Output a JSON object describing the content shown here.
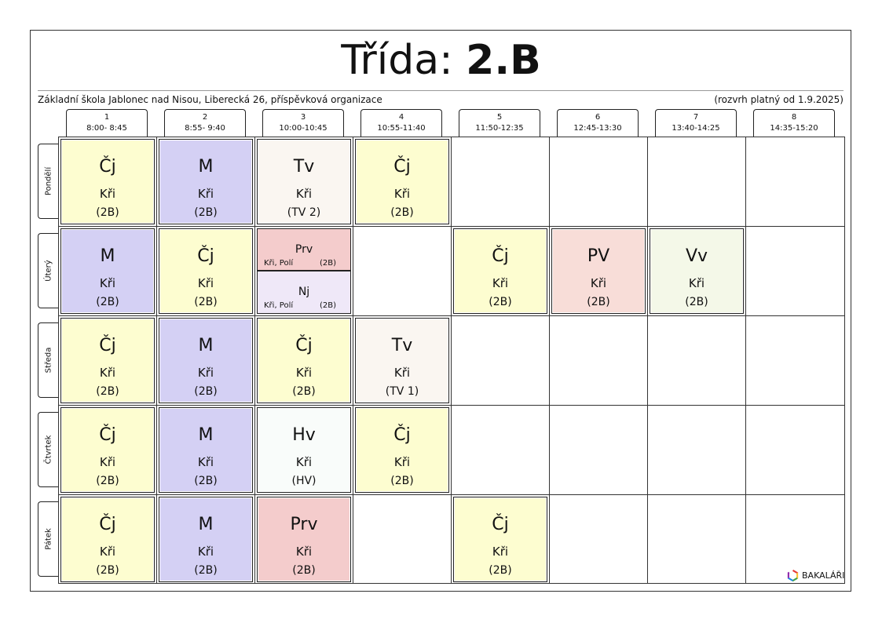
{
  "header": {
    "title_prefix": "Třída:",
    "class_name": "2.B",
    "school": "Základní škola Jablonec nad Nisou, Liberecká 26, příspěvková organizace",
    "validity": "(rozvrh platný od 1.9.2025)"
  },
  "periods": [
    {
      "num": "1",
      "time": "8:00- 8:45"
    },
    {
      "num": "2",
      "time": "8:55- 9:40"
    },
    {
      "num": "3",
      "time": "10:00-10:45"
    },
    {
      "num": "4",
      "time": "10:55-11:40"
    },
    {
      "num": "5",
      "time": "11:50-12:35"
    },
    {
      "num": "6",
      "time": "12:45-13:30"
    },
    {
      "num": "7",
      "time": "13:40-14:25"
    },
    {
      "num": "8",
      "time": "14:35-15:20"
    }
  ],
  "days": [
    "Pondělí",
    "Úterý",
    "Středa",
    "Čtvrtek",
    "Pátek"
  ],
  "colors": {
    "cj": "#fdfdd0",
    "m": "#d4d0f4",
    "tv": "#faf6f1",
    "prv": "#f4cccc",
    "pv": "#f8ddd8",
    "vv": "#f4f8e8",
    "hv": "#f9fcfa",
    "nj": "#efe8f8"
  },
  "lessons": {
    "mon_1": {
      "subject": "Čj",
      "teacher": "Kři",
      "group": "(2B)"
    },
    "mon_2": {
      "subject": "M",
      "teacher": "Kři",
      "group": "(2B)"
    },
    "mon_3": {
      "subject": "Tv",
      "teacher": "Kři",
      "group": "(TV 2)"
    },
    "mon_4": {
      "subject": "Čj",
      "teacher": "Kři",
      "group": "(2B)"
    },
    "tue_1": {
      "subject": "M",
      "teacher": "Kři",
      "group": "(2B)"
    },
    "tue_2": {
      "subject": "Čj",
      "teacher": "Kři",
      "group": "(2B)"
    },
    "tue_3a": {
      "subject": "Prv",
      "teacher": "Kři, Polí",
      "group": "(2B)"
    },
    "tue_3b": {
      "subject": "Nj",
      "teacher": "Kři, Polí",
      "group": "(2B)"
    },
    "tue_5": {
      "subject": "Čj",
      "teacher": "Kři",
      "group": "(2B)"
    },
    "tue_6": {
      "subject": "PV",
      "teacher": "Kři",
      "group": "(2B)"
    },
    "tue_7": {
      "subject": "Vv",
      "teacher": "Kři",
      "group": "(2B)"
    },
    "wed_1": {
      "subject": "Čj",
      "teacher": "Kři",
      "group": "(2B)"
    },
    "wed_2": {
      "subject": "M",
      "teacher": "Kři",
      "group": "(2B)"
    },
    "wed_3": {
      "subject": "Čj",
      "teacher": "Kři",
      "group": "(2B)"
    },
    "wed_4": {
      "subject": "Tv",
      "teacher": "Kři",
      "group": "(TV 1)"
    },
    "thu_1": {
      "subject": "Čj",
      "teacher": "Kři",
      "group": "(2B)"
    },
    "thu_2": {
      "subject": "M",
      "teacher": "Kři",
      "group": "(2B)"
    },
    "thu_3": {
      "subject": "Hv",
      "teacher": "Kři",
      "group": "(HV)"
    },
    "thu_4": {
      "subject": "Čj",
      "teacher": "Kři",
      "group": "(2B)"
    },
    "fri_1": {
      "subject": "Čj",
      "teacher": "Kři",
      "group": "(2B)"
    },
    "fri_2": {
      "subject": "M",
      "teacher": "Kři",
      "group": "(2B)"
    },
    "fri_3": {
      "subject": "Prv",
      "teacher": "Kři",
      "group": "(2B)"
    },
    "fri_5": {
      "subject": "Čj",
      "teacher": "Kři",
      "group": "(2B)"
    }
  },
  "footer": {
    "logo_text": "BAKALÁŘI",
    "logo_icon": "bakalari-logo-icon"
  }
}
